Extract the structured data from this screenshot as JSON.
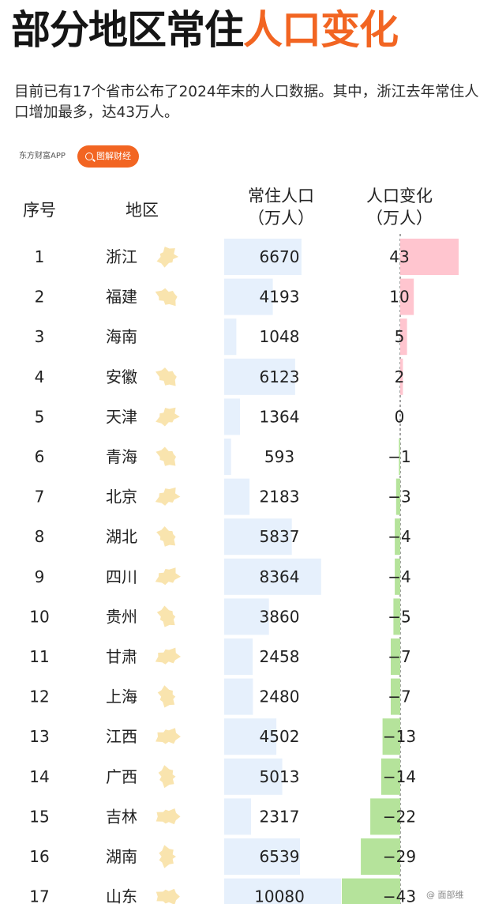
{
  "title": {
    "part1": "部分地区常住",
    "part2": "人口变化"
  },
  "subtitle": "目前已有17个省市公布了2024年末的人口数据。其中，浙江去年常住人口增加最多，达43万人。",
  "source_tag": "东方财富APP",
  "brand_pill": "图解财经",
  "watermark": "@ 面部维",
  "headers": {
    "rank": "序号",
    "region": "地区",
    "population_line1": "常住人口",
    "population_line2": "（万人）",
    "change_line1": "人口变化",
    "change_line2": "（万人）"
  },
  "colors": {
    "title_accent": "#f26522",
    "population_bar": "#e6f0fc",
    "change_positive": "#ffc5cf",
    "change_negative": "#b5e39b",
    "map_fill": "#f8dfa0"
  },
  "chart_data": {
    "type": "table",
    "columns": [
      "序号",
      "地区",
      "常住人口（万人）",
      "人口变化（万人）"
    ],
    "rows": [
      {
        "rank": "1",
        "region": "浙江",
        "population": 6670,
        "population_label": "6670",
        "change": 43,
        "change_label": "43"
      },
      {
        "rank": "2",
        "region": "福建",
        "population": 4193,
        "population_label": "4193",
        "change": 10,
        "change_label": "10"
      },
      {
        "rank": "3",
        "region": "海南",
        "population": 1048,
        "population_label": "1048",
        "change": 5,
        "change_label": "5"
      },
      {
        "rank": "4",
        "region": "安徽",
        "population": 6123,
        "population_label": "6123",
        "change": 2,
        "change_label": "2"
      },
      {
        "rank": "5",
        "region": "天津",
        "population": 1364,
        "population_label": "1364",
        "change": 0,
        "change_label": "0"
      },
      {
        "rank": "6",
        "region": "青海",
        "population": 593,
        "population_label": "593",
        "change": -1,
        "change_label": "−1"
      },
      {
        "rank": "7",
        "region": "北京",
        "population": 2183,
        "population_label": "2183",
        "change": -3,
        "change_label": "−3"
      },
      {
        "rank": "8",
        "region": "湖北",
        "population": 5837,
        "population_label": "5837",
        "change": -4,
        "change_label": "−4"
      },
      {
        "rank": "9",
        "region": "四川",
        "population": 8364,
        "population_label": "8364",
        "change": -4,
        "change_label": "−4"
      },
      {
        "rank": "10",
        "region": "贵州",
        "population": 3860,
        "population_label": "3860",
        "change": -5,
        "change_label": "−5"
      },
      {
        "rank": "11",
        "region": "甘肃",
        "population": 2458,
        "population_label": "2458",
        "change": -7,
        "change_label": "−7"
      },
      {
        "rank": "12",
        "region": "上海",
        "population": 2480,
        "population_label": "2480",
        "change": -7,
        "change_label": "−7"
      },
      {
        "rank": "13",
        "region": "江西",
        "population": 4502,
        "population_label": "4502",
        "change": -13,
        "change_label": "−13"
      },
      {
        "rank": "14",
        "region": "广西",
        "population": 5013,
        "population_label": "5013",
        "change": -14,
        "change_label": "−14"
      },
      {
        "rank": "15",
        "region": "吉林",
        "population": 2317,
        "population_label": "2317",
        "change": -22,
        "change_label": "−22"
      },
      {
        "rank": "16",
        "region": "湖南",
        "population": 6539,
        "population_label": "6539",
        "change": -29,
        "change_label": "−29"
      },
      {
        "rank": "17",
        "region": "山东",
        "population": 10080,
        "population_label": "10080",
        "change": -43,
        "change_label": "−43"
      }
    ],
    "population_axis_max": 10080,
    "change_axis_range": [
      -43,
      43
    ]
  }
}
